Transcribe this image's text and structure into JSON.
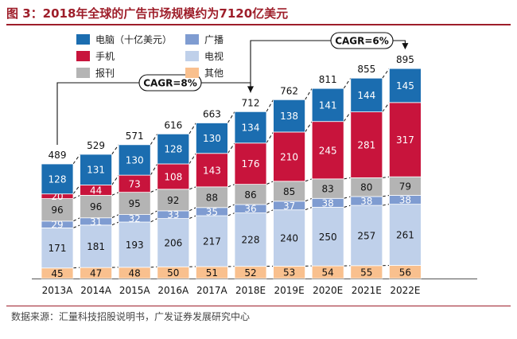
{
  "header": {
    "title": "图 3：2018年全球的广告市场规模约为7120亿美元"
  },
  "source": "数据来源：汇量科技招股说明书，广发证券发展研究中心",
  "chart_data": {
    "type": "bar",
    "stacked": true,
    "categories": [
      "2013A",
      "2014A",
      "2015A",
      "2016A",
      "2017A",
      "2018E",
      "2019E",
      "2020E",
      "2021E",
      "2022E"
    ],
    "series": [
      {
        "name": "其他",
        "color": "#f9c08e",
        "values": [
          45,
          47,
          48,
          50,
          51,
          52,
          53,
          54,
          55,
          56
        ]
      },
      {
        "name": "电视",
        "color": "#bfd0ea",
        "values": [
          171,
          181,
          193,
          206,
          217,
          228,
          240,
          250,
          257,
          261
        ]
      },
      {
        "name": "广播",
        "color": "#7f9cd1",
        "values": [
          29,
          31,
          32,
          33,
          35,
          36,
          37,
          38,
          38,
          38
        ]
      },
      {
        "name": "报刊",
        "color": "#b4b4b4",
        "values": [
          96,
          96,
          95,
          92,
          88,
          86,
          85,
          83,
          80,
          79
        ]
      },
      {
        "name": "手机",
        "color": "#c8143c",
        "values": [
          20,
          44,
          73,
          108,
          143,
          176,
          210,
          245,
          281,
          317
        ]
      },
      {
        "name": "电脑（十亿美元）",
        "color": "#1b6db0",
        "values": [
          128,
          131,
          130,
          128,
          130,
          134,
          138,
          141,
          144,
          145
        ]
      }
    ],
    "totals": [
      489,
      529,
      571,
      616,
      663,
      712,
      762,
      811,
      855,
      895
    ],
    "legend": [
      {
        "name": "电脑（十亿美元）",
        "color": "#1b6db0"
      },
      {
        "name": "广播",
        "color": "#7f9cd1"
      },
      {
        "name": "手机",
        "color": "#c8143c"
      },
      {
        "name": "电视",
        "color": "#bfd0ea"
      },
      {
        "name": "报刊",
        "color": "#b4b4b4"
      },
      {
        "name": "其他",
        "color": "#f9c08e"
      }
    ],
    "annotations": [
      {
        "text": "CAGR=8%",
        "from": "2013A",
        "to": "2018E"
      },
      {
        "text": "CAGR=6%",
        "from": "2018E",
        "to": "2022E"
      }
    ]
  }
}
